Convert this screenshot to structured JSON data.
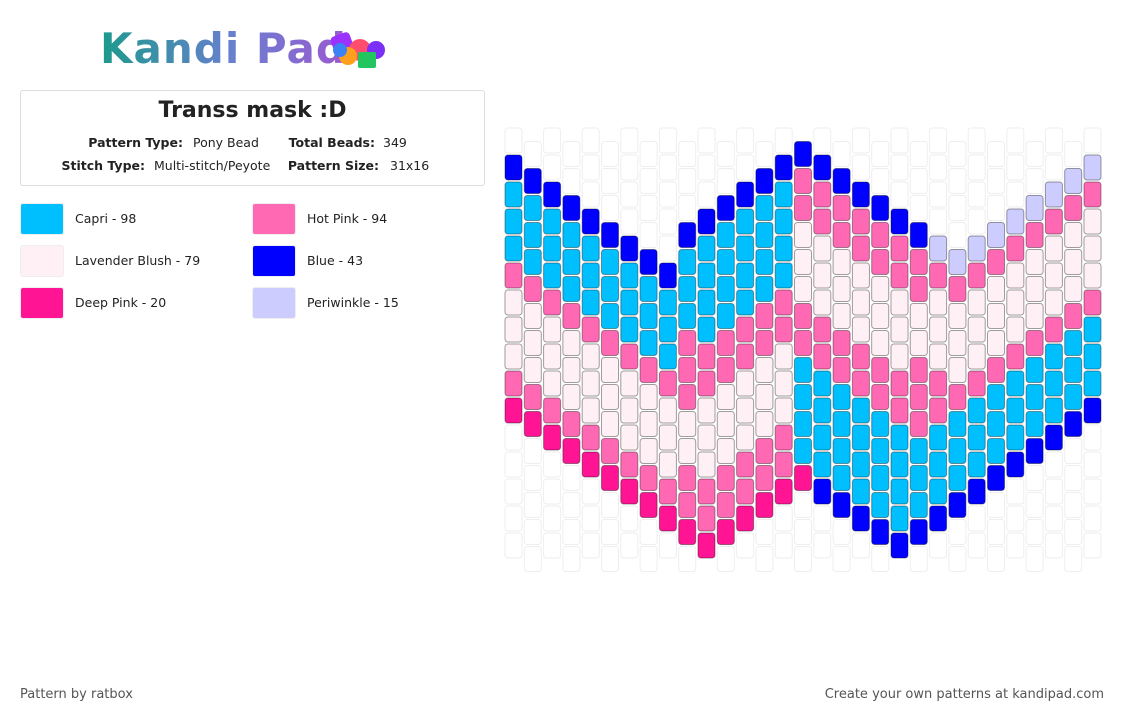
{
  "header": {
    "logo": "Kandi Pad"
  },
  "info": {
    "title": "Transs mask  :D",
    "fields": [
      {
        "label": "Pattern Type:",
        "value": "Pony Bead"
      },
      {
        "label": "Total Beads:",
        "value": "349"
      },
      {
        "label": "Stitch Type:",
        "value": "Multi-stitch/Peyote"
      },
      {
        "label": "Pattern Size:",
        "value": "31x16"
      }
    ]
  },
  "legend": [
    {
      "label": "Capri - 98",
      "color": "#00bfff"
    },
    {
      "label": "Hot Pink - 94",
      "color": "#ff69b4"
    },
    {
      "label": "Lavender Blush - 79",
      "color": "#fff0f5"
    },
    {
      "label": "Blue - 43",
      "color": "#0000ff"
    },
    {
      "label": "Deep Pink - 20",
      "color": "#ff1493"
    },
    {
      "label": "Periwinkle - 15",
      "color": "#ccccff"
    }
  ],
  "footer": {
    "credit": "Pattern by ratbox",
    "link": "Create your own patterns at kandipad.com"
  }
}
